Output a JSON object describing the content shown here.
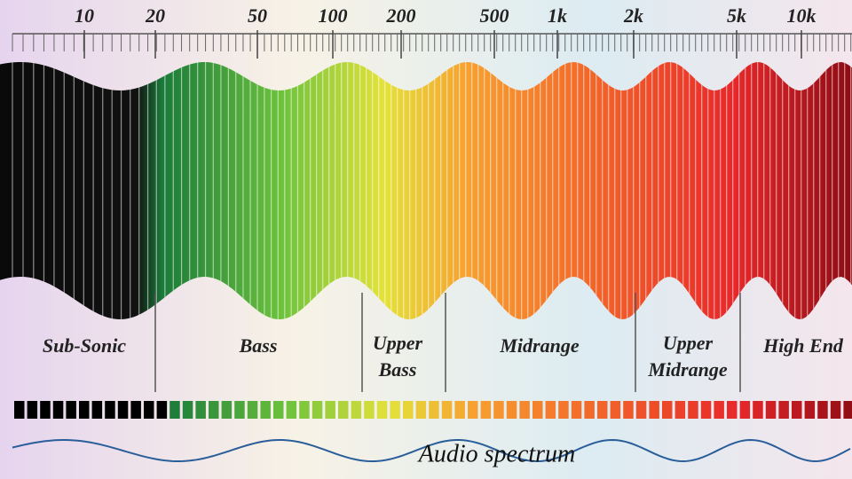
{
  "frequency_labels": [
    "10",
    "20",
    "50",
    "100",
    "200",
    "500",
    "1k",
    "2k",
    "5k",
    "10k"
  ],
  "bands": [
    {
      "lines": [
        "Sub-Sonic"
      ]
    },
    {
      "lines": [
        "Bass"
      ]
    },
    {
      "lines": [
        "Upper",
        "Bass"
      ]
    },
    {
      "lines": [
        "Midrange"
      ]
    },
    {
      "lines": [
        "Upper",
        "Midrange"
      ]
    },
    {
      "lines": [
        "High End"
      ]
    }
  ],
  "caption": "Audio spectrum"
}
